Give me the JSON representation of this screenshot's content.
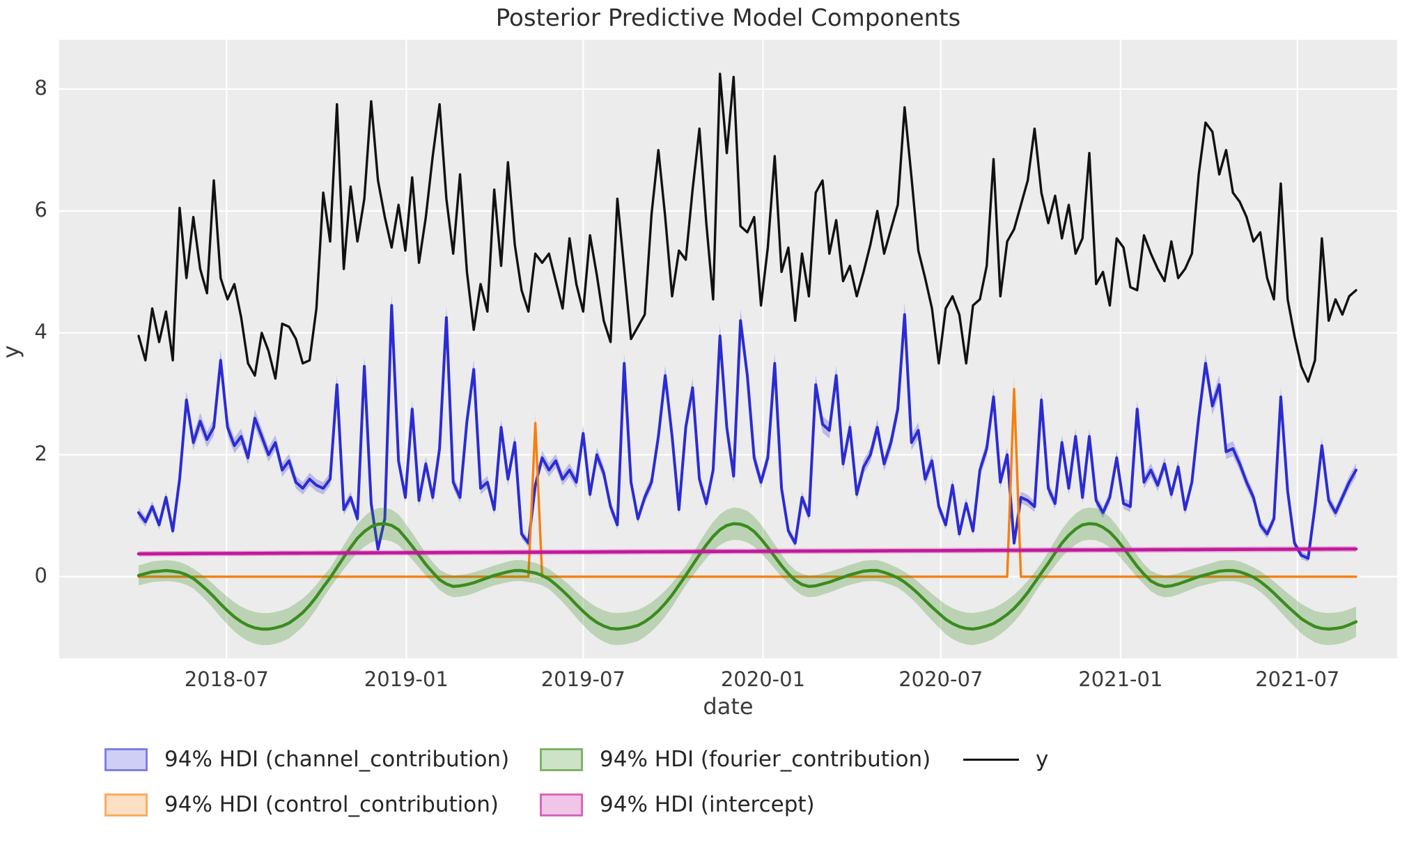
{
  "title": "Posterior Predictive Model Components",
  "axes": {
    "xlabel": "date",
    "ylabel": "y",
    "ylim": [
      -1.34,
      8.81
    ],
    "y_ticks": [
      0,
      2,
      4,
      6,
      8
    ],
    "x_ticks": [
      {
        "label": "2018-07",
        "week": 12.86
      },
      {
        "label": "2019-01",
        "week": 39.14
      },
      {
        "label": "2019-07",
        "week": 65.0
      },
      {
        "label": "2020-01",
        "week": 91.29
      },
      {
        "label": "2020-07",
        "week": 117.29
      },
      {
        "label": "2021-01",
        "week": 143.57
      },
      {
        "label": "2021-07",
        "week": 169.43
      }
    ],
    "plot_background": "#ececec",
    "grid_color": "#ffffff"
  },
  "legend": {
    "items": [
      {
        "label": "94% HDI (channel_contribution)",
        "type": "patch",
        "fill": "rgba(62,62,215,0.25)",
        "edge": "rgba(62,62,215,0.55)"
      },
      {
        "label": "94% HDI (control_contribution)",
        "type": "patch",
        "fill": "rgba(247,127,14,0.25)",
        "edge": "rgba(247,127,14,0.55)"
      },
      {
        "label": "94% HDI (fourier_contribution)",
        "type": "patch",
        "fill": "rgba(58,140,30,0.25)",
        "edge": "rgba(58,140,30,0.55)"
      },
      {
        "label": "94% HDI (intercept)",
        "type": "patch",
        "fill": "rgba(194,24,157,0.25)",
        "edge": "rgba(194,24,157,0.55)"
      },
      {
        "label": "y",
        "type": "line",
        "color": "#111111"
      }
    ]
  },
  "chart_data": {
    "type": "line",
    "title": "Posterior Predictive Model Components",
    "xlabel": "date",
    "ylabel": "y",
    "x_start_date": "2018-04-02",
    "x_step_days": 7,
    "n_points": 179,
    "x_tick_labels": [
      "2018-07",
      "2019-01",
      "2019-07",
      "2020-01",
      "2020-07",
      "2021-01",
      "2021-07"
    ],
    "ylim": [
      -1.34,
      8.81
    ],
    "grid": true,
    "legend_position": "below",
    "series": [
      {
        "name": "y",
        "kind": "line",
        "color": "#111111",
        "linewidth": 3.4,
        "values": [
          3.95,
          3.55,
          4.4,
          3.85,
          4.35,
          3.55,
          6.05,
          4.9,
          5.9,
          5.05,
          4.65,
          6.5,
          4.9,
          4.55,
          4.8,
          4.25,
          3.5,
          3.3,
          4.0,
          3.7,
          3.25,
          4.15,
          4.1,
          3.9,
          3.5,
          3.55,
          4.4,
          6.3,
          5.5,
          7.75,
          5.05,
          6.4,
          5.5,
          6.2,
          7.8,
          6.5,
          5.9,
          5.4,
          6.1,
          5.35,
          6.55,
          5.15,
          5.9,
          6.9,
          7.75,
          6.2,
          5.3,
          6.6,
          5.0,
          4.05,
          4.8,
          4.35,
          6.35,
          5.1,
          6.8,
          5.45,
          4.7,
          4.35,
          5.3,
          5.15,
          5.3,
          4.85,
          4.4,
          5.55,
          4.8,
          4.35,
          5.6,
          4.95,
          4.2,
          3.85,
          6.2,
          5.05,
          3.9,
          4.1,
          4.3,
          5.95,
          7.0,
          5.9,
          4.6,
          5.35,
          5.2,
          6.35,
          7.35,
          5.8,
          4.55,
          8.25,
          6.95,
          8.2,
          5.75,
          5.65,
          5.9,
          4.45,
          5.4,
          6.9,
          5.0,
          5.4,
          4.2,
          5.3,
          4.6,
          6.3,
          6.5,
          5.3,
          5.85,
          4.85,
          5.1,
          4.6,
          5.0,
          5.45,
          6.0,
          5.3,
          5.7,
          6.1,
          7.7,
          6.55,
          5.35,
          4.9,
          4.4,
          3.5,
          4.4,
          4.6,
          4.3,
          3.5,
          4.45,
          4.55,
          5.1,
          6.85,
          4.6,
          5.5,
          5.7,
          6.1,
          6.5,
          7.35,
          6.3,
          5.8,
          6.25,
          5.55,
          6.1,
          5.3,
          5.55,
          6.95,
          4.8,
          5.0,
          4.45,
          5.55,
          5.4,
          4.75,
          4.7,
          5.6,
          5.3,
          5.05,
          4.85,
          5.5,
          4.9,
          5.05,
          5.3,
          6.6,
          7.45,
          7.3,
          6.6,
          7.0,
          6.3,
          6.15,
          5.9,
          5.5,
          5.65,
          4.9,
          4.55,
          6.45,
          4.55,
          3.95,
          3.45,
          3.2,
          3.55,
          5.55,
          4.2,
          4.55,
          4.3,
          4.6,
          4.7
        ]
      },
      {
        "name": "94% HDI (channel_contribution)",
        "kind": "band_line",
        "color": "#2b2bd4",
        "band_color": "rgba(62,62,215,0.28)",
        "linewidth": 4,
        "band": {
          "base": 0.05,
          "scale": 0.035
        },
        "values": [
          1.05,
          0.9,
          1.15,
          0.85,
          1.3,
          0.75,
          1.6,
          2.9,
          2.2,
          2.55,
          2.25,
          2.45,
          3.55,
          2.45,
          2.15,
          2.3,
          1.95,
          2.6,
          2.3,
          2.0,
          2.2,
          1.75,
          1.9,
          1.55,
          1.45,
          1.6,
          1.5,
          1.45,
          1.6,
          3.15,
          1.1,
          1.3,
          0.95,
          3.45,
          1.2,
          0.45,
          0.95,
          4.45,
          1.9,
          1.3,
          2.75,
          1.25,
          1.85,
          1.3,
          2.1,
          4.25,
          1.55,
          1.3,
          2.55,
          3.4,
          1.45,
          1.55,
          1.1,
          2.45,
          1.6,
          2.2,
          0.7,
          0.55,
          1.5,
          1.95,
          1.75,
          1.9,
          1.6,
          1.75,
          1.55,
          2.35,
          1.35,
          2.0,
          1.7,
          1.15,
          0.85,
          3.5,
          1.55,
          0.95,
          1.3,
          1.55,
          2.3,
          3.3,
          2.3,
          1.1,
          2.45,
          3.1,
          1.6,
          1.2,
          1.75,
          3.95,
          2.45,
          1.65,
          4.2,
          3.3,
          1.95,
          1.55,
          1.95,
          3.5,
          1.45,
          0.75,
          0.55,
          1.3,
          1.0,
          3.15,
          2.5,
          2.4,
          3.3,
          1.85,
          2.45,
          1.35,
          1.8,
          2.0,
          2.45,
          1.85,
          2.2,
          2.75,
          4.3,
          2.2,
          2.4,
          1.6,
          1.9,
          1.15,
          0.85,
          1.5,
          0.7,
          1.2,
          0.75,
          1.75,
          2.1,
          2.95,
          1.55,
          2.0,
          0.55,
          1.3,
          1.25,
          1.15,
          2.9,
          1.45,
          1.2,
          2.2,
          1.45,
          2.3,
          1.3,
          2.3,
          1.25,
          1.05,
          1.3,
          1.95,
          1.2,
          1.15,
          2.75,
          1.55,
          1.75,
          1.5,
          1.85,
          1.35,
          1.8,
          1.1,
          1.55,
          2.6,
          3.5,
          2.8,
          3.15,
          2.05,
          2.1,
          1.85,
          1.55,
          1.3,
          0.85,
          0.7,
          0.95,
          2.95,
          1.4,
          0.55,
          0.35,
          0.3,
          1.15,
          2.15,
          1.25,
          1.05,
          1.3,
          1.55,
          1.75
        ]
      },
      {
        "name": "94% HDI (control_contribution)",
        "kind": "band_line",
        "color": "#f77f0e",
        "band_color": "rgba(247,127,14,0.30)",
        "linewidth": 3.4,
        "band": {
          "base": 0.0,
          "scale": 0.07
        },
        "values_spec": {
          "shape": "spikes",
          "base_value": 0,
          "spikes": [
            {
              "week": 58,
              "date": "2019-05-13",
              "value": 2.52
            },
            {
              "week": 128,
              "date": "2020-09-14",
              "value": 3.08
            }
          ]
        }
      },
      {
        "name": "94% HDI (fourier_contribution)",
        "kind": "band_line",
        "color": "#3a8c1e",
        "band_color": "rgba(58,140,30,0.27)",
        "linewidth": 4.4,
        "band": {
          "base": 0.16,
          "scale": 0.12
        },
        "values": [
          0.02,
          0.05,
          0.08,
          0.09,
          0.1,
          0.09,
          0.07,
          0.03,
          -0.03,
          -0.12,
          -0.22,
          -0.33,
          -0.45,
          -0.56,
          -0.66,
          -0.74,
          -0.8,
          -0.84,
          -0.86,
          -0.86,
          -0.84,
          -0.81,
          -0.76,
          -0.68,
          -0.59,
          -0.47,
          -0.33,
          -0.17,
          -0.02,
          0.15,
          0.32,
          0.48,
          0.63,
          0.74,
          0.82,
          0.86,
          0.87,
          0.84,
          0.77,
          0.64,
          0.5,
          0.35,
          0.2,
          0.07,
          -0.05,
          -0.12,
          -0.16,
          -0.15,
          -0.13,
          -0.1,
          -0.06,
          -0.02,
          0.02,
          0.05,
          0.08,
          0.1,
          0.1,
          0.08,
          0.06,
          0.02,
          -0.04,
          -0.13,
          -0.23,
          -0.34,
          -0.46,
          -0.57,
          -0.67,
          -0.75,
          -0.81,
          -0.85,
          -0.86,
          -0.85,
          -0.83,
          -0.8,
          -0.74,
          -0.66,
          -0.56,
          -0.44,
          -0.3,
          -0.14,
          0.02,
          0.19,
          0.36,
          0.52,
          0.66,
          0.77,
          0.84,
          0.87,
          0.86,
          0.82,
          0.74,
          0.62,
          0.48,
          0.33,
          0.18,
          0.05,
          -0.06,
          -0.13,
          -0.16,
          -0.15,
          -0.12,
          -0.09,
          -0.05,
          -0.01,
          0.03,
          0.06,
          0.09,
          0.1,
          0.1,
          0.07,
          0.03,
          -0.02,
          -0.09,
          -0.18,
          -0.28,
          -0.39,
          -0.5,
          -0.6,
          -0.7,
          -0.77,
          -0.82,
          -0.85,
          -0.86,
          -0.84,
          -0.81,
          -0.77,
          -0.7,
          -0.62,
          -0.52,
          -0.4,
          -0.26,
          -0.1,
          0.06,
          0.22,
          0.39,
          0.55,
          0.68,
          0.78,
          0.85,
          0.87,
          0.86,
          0.81,
          0.73,
          0.61,
          0.47,
          0.32,
          0.17,
          0.04,
          -0.07,
          -0.13,
          -0.16,
          -0.15,
          -0.12,
          -0.08,
          -0.04,
          0.0,
          0.03,
          0.06,
          0.09,
          0.1,
          0.1,
          0.08,
          0.04,
          -0.01,
          -0.08,
          -0.17,
          -0.27,
          -0.38,
          -0.49,
          -0.59,
          -0.69,
          -0.76,
          -0.82,
          -0.85,
          -0.86,
          -0.85,
          -0.83,
          -0.79,
          -0.74
        ]
      },
      {
        "name": "94% HDI (intercept)",
        "kind": "band_line",
        "color": "#c2189d",
        "band_color": "rgba(194,24,157,0.30)",
        "linewidth": 4.6,
        "band": {
          "base": 0.028,
          "scale": 0.04
        },
        "values_spec": {
          "shape": "linear",
          "start": 0.375,
          "end": 0.455
        }
      }
    ]
  }
}
